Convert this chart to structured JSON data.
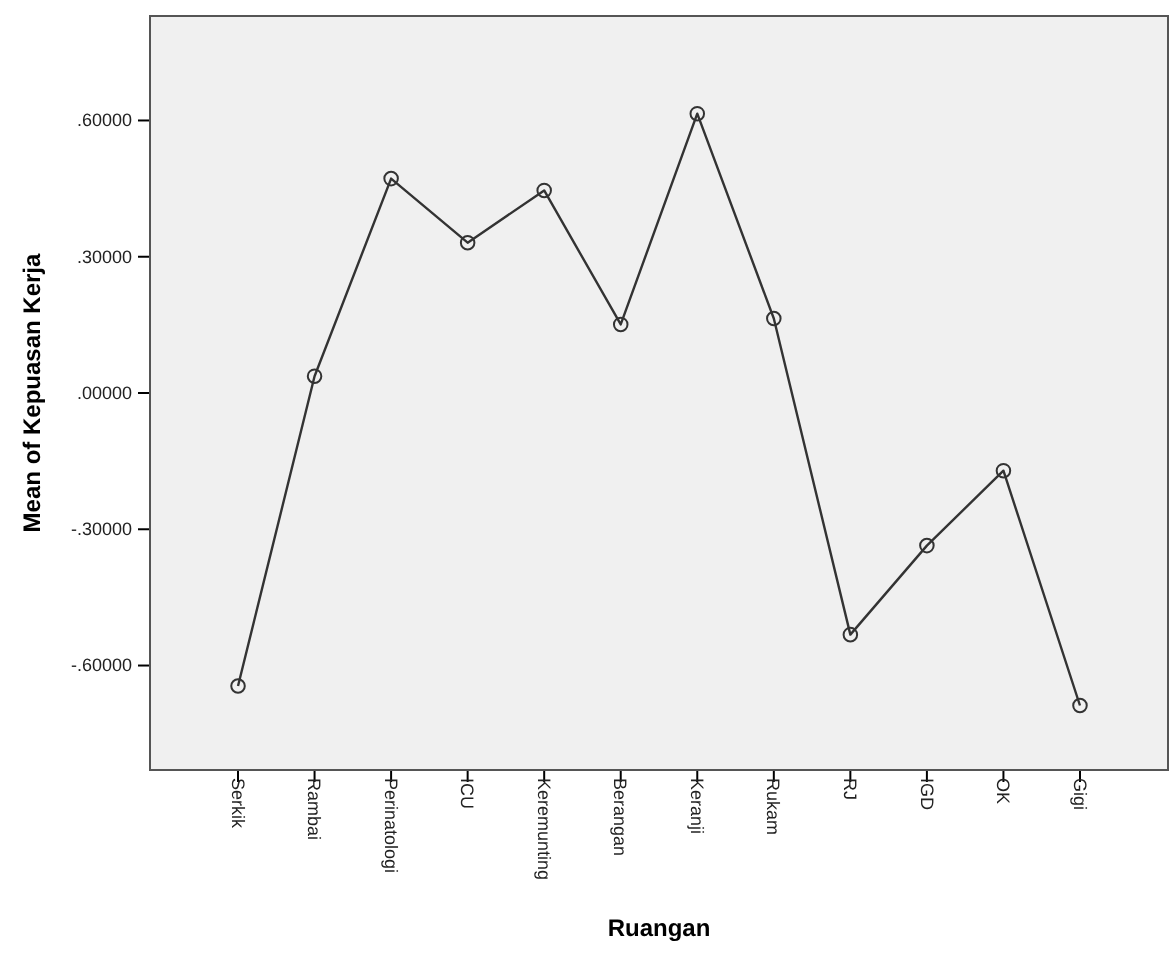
{
  "chart_data": {
    "type": "line",
    "xlabel": "Ruangan",
    "ylabel": "Mean of Kepuasan Kerja",
    "categories": [
      "Serkik",
      "Rambai",
      "Perinatologi",
      "ICU",
      "Keremunting",
      "Berangan",
      "Keranji",
      "Rukam",
      "RJ",
      "IGD",
      "OK",
      "Gigi"
    ],
    "series": [
      {
        "color": "#333333",
        "values": [
          -0.645,
          0.037,
          0.472,
          0.331,
          0.446,
          0.151,
          0.615,
          0.164,
          -0.532,
          -0.336,
          -0.171,
          -0.688
        ]
      }
    ],
    "ylim": [
      -0.83,
      0.83
    ],
    "yticks": [
      {
        "value": -0.6,
        "label": "-.60000"
      },
      {
        "value": -0.3,
        "label": "-.30000"
      },
      {
        "value": 0,
        "label": ".00000"
      },
      {
        "value": 0.3,
        "label": ".30000"
      },
      {
        "value": 0.6,
        "label": ".60000"
      }
    ],
    "marker": "circle",
    "line_style": "solid",
    "grid": false
  }
}
